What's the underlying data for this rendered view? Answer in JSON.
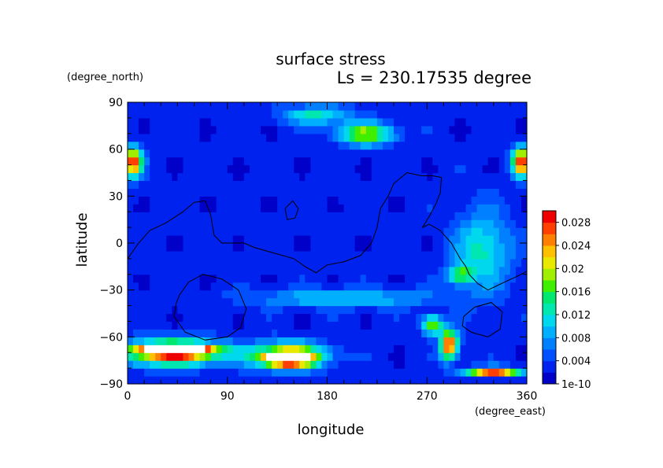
{
  "chart_data": {
    "type": "heatmap",
    "title": "surface stress",
    "subtitle": "Ls = 230.17535 degree",
    "xlabel": "longitude",
    "ylabel": "latitude",
    "xunit": "(degree_east)",
    "yunit": "(degree_north)",
    "xlim": [
      0,
      360
    ],
    "ylim": [
      -90,
      90
    ],
    "x_ticks": [
      "0",
      "90",
      "180",
      "270",
      "360"
    ],
    "y_ticks": [
      "90",
      "60",
      "30",
      "0",
      "−30",
      "−60",
      "−90"
    ],
    "colorbar_ticks": [
      "1e-10",
      "0.004",
      "0.008",
      "0.012",
      "0.016",
      "0.02",
      "0.024",
      "0.028"
    ],
    "colorbar_range": [
      0,
      0.03
    ],
    "colors": [
      "#0000c8",
      "#0022ee",
      "#0050ff",
      "#0080ff",
      "#00b0ff",
      "#00d8ee",
      "#00e8b0",
      "#00e870",
      "#40ee00",
      "#a0ee00",
      "#e8e800",
      "#ffc000",
      "#ff8000",
      "#ff4000",
      "#ee0000"
    ],
    "features": [
      {
        "lon": 45,
        "lat": -68,
        "value": 0.034,
        "rlon": 28,
        "rlat": 3
      },
      {
        "lon": 40,
        "lat": -70,
        "value": 0.024,
        "rlon": 45,
        "rlat": 8
      },
      {
        "lon": 145,
        "lat": -74,
        "value": 0.034,
        "rlon": 18,
        "rlat": 3
      },
      {
        "lon": 145,
        "lat": -72,
        "value": 0.024,
        "rlon": 32,
        "rlat": 8
      },
      {
        "lon": 290,
        "lat": -65,
        "value": 0.026,
        "rlon": 8,
        "rlat": 9
      },
      {
        "lon": 275,
        "lat": -52,
        "value": 0.016,
        "rlon": 10,
        "rlat": 6
      },
      {
        "lon": 330,
        "lat": -82,
        "value": 0.024,
        "rlon": 25,
        "rlat": 3
      },
      {
        "lon": 5,
        "lat": 52,
        "value": 0.026,
        "rlon": 8,
        "rlat": 9
      },
      {
        "lon": 355,
        "lat": 52,
        "value": 0.026,
        "rlon": 8,
        "rlat": 9
      },
      {
        "lon": 215,
        "lat": 70,
        "value": 0.016,
        "rlon": 25,
        "rlat": 7
      },
      {
        "lon": 170,
        "lat": 82,
        "value": 0.01,
        "rlon": 30,
        "rlat": 6
      },
      {
        "lon": 320,
        "lat": -5,
        "value": 0.01,
        "rlon": 25,
        "rlat": 25
      },
      {
        "lon": 300,
        "lat": -20,
        "value": 0.013,
        "rlon": 10,
        "rlat": 6
      },
      {
        "lon": 195,
        "lat": -35,
        "value": 0.008,
        "rlon": 80,
        "rlat": 6
      }
    ]
  }
}
